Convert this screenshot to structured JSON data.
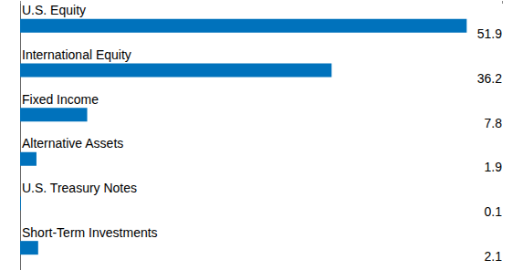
{
  "chart_data": {
    "type": "bar",
    "orientation": "horizontal",
    "categories": [
      "U.S. Equity",
      "International Equity",
      "Fixed Income",
      "Alternative Assets",
      "U.S. Treasury Notes",
      "Short-Term Investments"
    ],
    "values": [
      51.9,
      36.2,
      7.8,
      1.9,
      0.1,
      2.1
    ],
    "color": "#0072bc",
    "xlim": [
      0,
      56
    ],
    "xticks": [
      0,
      56
    ],
    "grid": false,
    "data_labels": true,
    "tick_labels": false
  }
}
